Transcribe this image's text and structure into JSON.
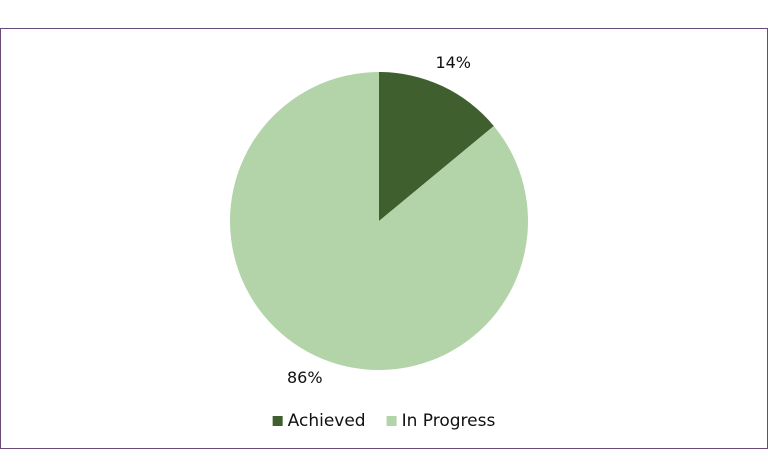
{
  "chart_data": {
    "type": "pie",
    "categories": [
      "Achieved",
      "In Progress"
    ],
    "values": [
      14,
      86
    ],
    "value_labels": [
      "14%",
      "86%"
    ],
    "colors": [
      "#3f5f2f",
      "#b3d3a8"
    ]
  }
}
